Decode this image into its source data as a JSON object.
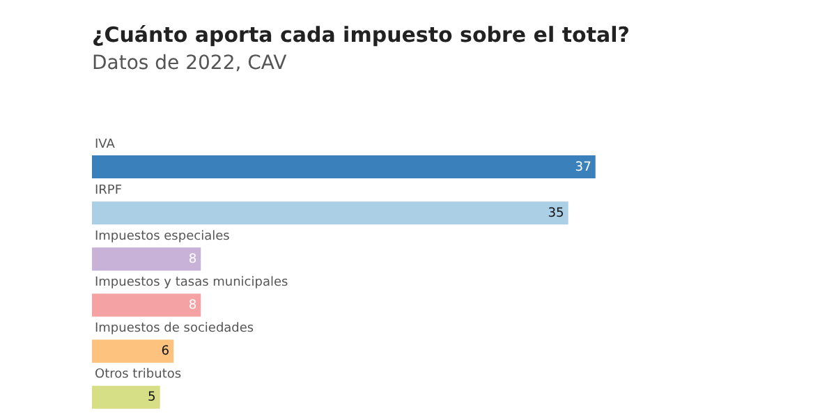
{
  "chart_data": {
    "type": "bar",
    "orientation": "horizontal",
    "title": "¿Cuánto aporta cada impuesto sobre el total?",
    "subtitle": "Datos de 2022, CAV",
    "categories": [
      "IVA",
      "IRPF",
      "Impuestos especiales",
      "Impuestos y tasas municipales",
      "Impuestos de sociedades",
      "Otros tributos"
    ],
    "values": [
      37,
      35,
      8,
      8,
      6,
      5
    ],
    "colors": [
      "#3a80ba",
      "#abd0e6",
      "#c9b2d8",
      "#f4a2a3",
      "#fcc27e",
      "#d7df86"
    ],
    "data_labels": true
  }
}
